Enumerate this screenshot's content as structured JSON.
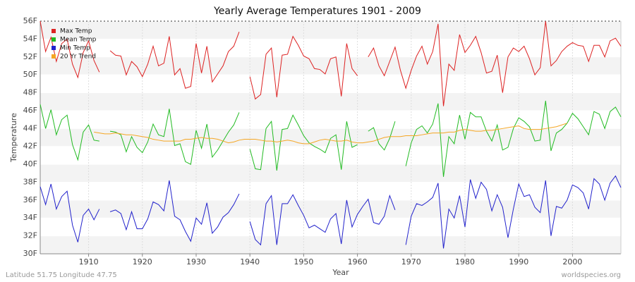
{
  "chart_data": {
    "type": "line",
    "title": "Yearly Average Temperatures 1901 - 2009",
    "x_label": "Year",
    "y_label": "Temperature",
    "footer_left": "Latitude 51.75 Longitude 47.75",
    "footer_right": "worldspecies.org",
    "legend": "top-left",
    "grid": true,
    "xlim": [
      1901,
      2009
    ],
    "xticks": [
      1910,
      1920,
      1930,
      1940,
      1950,
      1960,
      1970,
      1980,
      1990,
      2000
    ],
    "ylim": [
      30,
      56
    ],
    "yticks": [
      {
        "value": 30,
        "label": "30F"
      },
      {
        "value": 32,
        "label": "32F"
      },
      {
        "value": 34,
        "label": "34F"
      },
      {
        "value": 36,
        "label": "36F"
      },
      {
        "value": 38,
        "label": "38F"
      },
      {
        "value": 40,
        "label": "40F"
      },
      {
        "value": 42,
        "label": "42F"
      },
      {
        "value": 44,
        "label": "44F"
      },
      {
        "value": 46,
        "label": "46F"
      },
      {
        "value": 48,
        "label": "48F"
      },
      {
        "value": 50,
        "label": "50F"
      },
      {
        "value": 52,
        "label": "52F"
      },
      {
        "value": 54,
        "label": "54F"
      },
      {
        "value": 56,
        "label": "56F"
      }
    ],
    "x": [
      1901,
      1902,
      1903,
      1904,
      1905,
      1906,
      1907,
      1908,
      1909,
      1910,
      1911,
      1912,
      1913,
      1914,
      1915,
      1916,
      1917,
      1918,
      1919,
      1920,
      1921,
      1922,
      1923,
      1924,
      1925,
      1926,
      1927,
      1928,
      1929,
      1930,
      1931,
      1932,
      1933,
      1934,
      1935,
      1936,
      1937,
      1938,
      1939,
      1940,
      1941,
      1942,
      1943,
      1944,
      1945,
      1946,
      1947,
      1948,
      1949,
      1950,
      1951,
      1952,
      1953,
      1954,
      1955,
      1956,
      1957,
      1958,
      1959,
      1960,
      1961,
      1962,
      1963,
      1964,
      1965,
      1966,
      1967,
      1968,
      1969,
      1970,
      1971,
      1972,
      1973,
      1974,
      1975,
      1976,
      1977,
      1978,
      1979,
      1980,
      1981,
      1982,
      1983,
      1984,
      1985,
      1986,
      1987,
      1988,
      1989,
      1990,
      1991,
      1992,
      1993,
      1994,
      1995,
      1996,
      1997,
      1998,
      1999,
      2000,
      2001,
      2002,
      2003,
      2004,
      2005,
      2006,
      2007,
      2008,
      2009
    ],
    "series": [
      {
        "name": "Max Temp",
        "color": "#dd2222",
        "values": [
          56.0,
          52.6,
          54.2,
          51.5,
          53.5,
          54.0,
          51.2,
          49.7,
          52.5,
          53.8,
          51.6,
          50.3,
          null,
          52.7,
          52.2,
          52.1,
          50.0,
          51.5,
          50.9,
          49.8,
          51.2,
          53.2,
          51.0,
          51.3,
          54.3,
          50.0,
          50.7,
          48.5,
          48.7,
          53.5,
          50.2,
          53.2,
          49.2,
          50.1,
          51.0,
          52.6,
          53.2,
          54.8,
          null,
          49.8,
          47.3,
          47.8,
          52.3,
          53.0,
          47.5,
          52.2,
          52.3,
          54.3,
          53.3,
          52.1,
          51.8,
          50.7,
          50.6,
          50.1,
          51.8,
          52.0,
          47.6,
          53.5,
          50.7,
          49.9,
          null,
          52.0,
          53.0,
          51.0,
          49.9,
          51.5,
          53.1,
          50.5,
          48.5,
          50.5,
          52.1,
          53.2,
          51.2,
          52.6,
          55.7,
          46.5,
          51.2,
          50.5,
          54.5,
          52.5,
          53.3,
          54.3,
          52.5,
          50.2,
          50.4,
          52.2,
          48.0,
          52.0,
          53.0,
          52.6,
          53.2,
          51.8,
          50.0,
          50.8,
          56.0,
          51.0,
          51.6,
          52.6,
          53.2,
          53.6,
          53.3,
          53.2,
          51.5,
          53.3,
          53.3,
          52.0,
          53.8,
          54.1,
          53.2
        ]
      },
      {
        "name": "Mean Temp",
        "color": "#22bb22",
        "values": [
          46.7,
          44.0,
          46.1,
          43.3,
          45.0,
          45.5,
          42.2,
          40.5,
          43.6,
          44.4,
          42.7,
          42.6,
          null,
          43.7,
          43.6,
          43.3,
          41.4,
          43.1,
          41.9,
          41.3,
          42.5,
          44.5,
          43.3,
          43.1,
          46.2,
          42.1,
          42.3,
          40.3,
          40.0,
          43.8,
          41.8,
          44.5,
          40.8,
          41.6,
          42.6,
          43.6,
          44.4,
          45.8,
          null,
          41.7,
          39.5,
          39.4,
          44.0,
          44.8,
          39.3,
          43.9,
          44.0,
          45.5,
          44.4,
          43.2,
          42.4,
          42.0,
          41.7,
          41.3,
          42.9,
          43.3,
          39.4,
          44.8,
          41.9,
          42.2,
          null,
          43.7,
          44.1,
          42.3,
          41.6,
          42.9,
          44.8,
          null,
          39.8,
          42.4,
          43.9,
          44.3,
          43.5,
          44.5,
          46.8,
          38.6,
          43.1,
          42.3,
          45.5,
          42.8,
          45.8,
          45.3,
          45.3,
          43.7,
          42.6,
          44.4,
          41.6,
          41.9,
          44.0,
          45.2,
          44.8,
          44.2,
          42.6,
          42.7,
          47.1,
          41.5,
          43.5,
          43.9,
          44.6,
          45.7,
          45.1,
          44.2,
          43.3,
          45.9,
          45.6,
          44.0,
          45.9,
          46.4,
          45.3
        ]
      },
      {
        "name": "Min Temp",
        "color": "#2222cc",
        "values": [
          37.5,
          35.5,
          37.8,
          35.0,
          36.4,
          37.0,
          33.2,
          31.3,
          34.3,
          35.0,
          33.8,
          35.0,
          null,
          34.7,
          34.9,
          34.5,
          32.7,
          34.7,
          32.8,
          32.8,
          33.9,
          35.8,
          35.5,
          34.8,
          38.2,
          34.2,
          33.8,
          32.5,
          31.4,
          34.0,
          33.3,
          35.7,
          32.3,
          33.0,
          34.1,
          34.6,
          35.5,
          36.7,
          null,
          33.6,
          31.6,
          31.0,
          35.6,
          36.5,
          31.0,
          35.6,
          35.6,
          36.6,
          35.4,
          34.3,
          32.9,
          33.2,
          32.8,
          32.4,
          33.9,
          34.5,
          31.1,
          36.0,
          33.0,
          34.4,
          35.3,
          36.1,
          33.5,
          33.3,
          34.2,
          36.5,
          34.9,
          null,
          31.0,
          34.2,
          35.6,
          35.4,
          35.8,
          36.3,
          37.9,
          30.6,
          35.0,
          34.0,
          36.5,
          33.0,
          38.3,
          36.2,
          38.0,
          37.2,
          34.8,
          36.6,
          35.2,
          31.8,
          35.0,
          37.8,
          36.4,
          36.6,
          35.2,
          34.6,
          38.2,
          32.0,
          35.3,
          35.1,
          36.0,
          37.7,
          37.4,
          36.8,
          35.0,
          38.4,
          37.8,
          36.0,
          37.9,
          38.7,
          37.4
        ]
      },
      {
        "name": "20 Yr Trend",
        "color": "#f5a623",
        "values": [
          null,
          null,
          null,
          null,
          null,
          null,
          null,
          null,
          null,
          null,
          43.6,
          43.5,
          43.4,
          43.4,
          43.5,
          43.4,
          43.3,
          43.3,
          43.2,
          43.1,
          43.0,
          42.8,
          42.7,
          42.6,
          42.6,
          42.6,
          42.6,
          42.8,
          42.8,
          42.9,
          43.0,
          42.9,
          42.9,
          42.8,
          42.6,
          42.4,
          42.5,
          42.7,
          42.8,
          42.8,
          42.8,
          42.7,
          42.6,
          42.6,
          42.5,
          42.6,
          42.7,
          42.6,
          42.4,
          42.3,
          42.3,
          42.5,
          42.7,
          42.8,
          42.7,
          42.6,
          42.6,
          42.7,
          42.5,
          42.4,
          42.4,
          42.5,
          42.6,
          42.8,
          43.0,
          43.1,
          43.1,
          43.1,
          43.2,
          43.2,
          43.2,
          43.3,
          43.4,
          43.5,
          43.5,
          43.5,
          43.6,
          43.6,
          43.8,
          43.9,
          43.8,
          43.7,
          43.7,
          43.8,
          43.8,
          43.9,
          44.0,
          44.1,
          44.2,
          44.3,
          44.0,
          43.9,
          43.9,
          43.9,
          44.0,
          44.1,
          44.2,
          44.4,
          44.6,
          null,
          null,
          null,
          null,
          null,
          null,
          null,
          null,
          null,
          null
        ]
      }
    ]
  }
}
